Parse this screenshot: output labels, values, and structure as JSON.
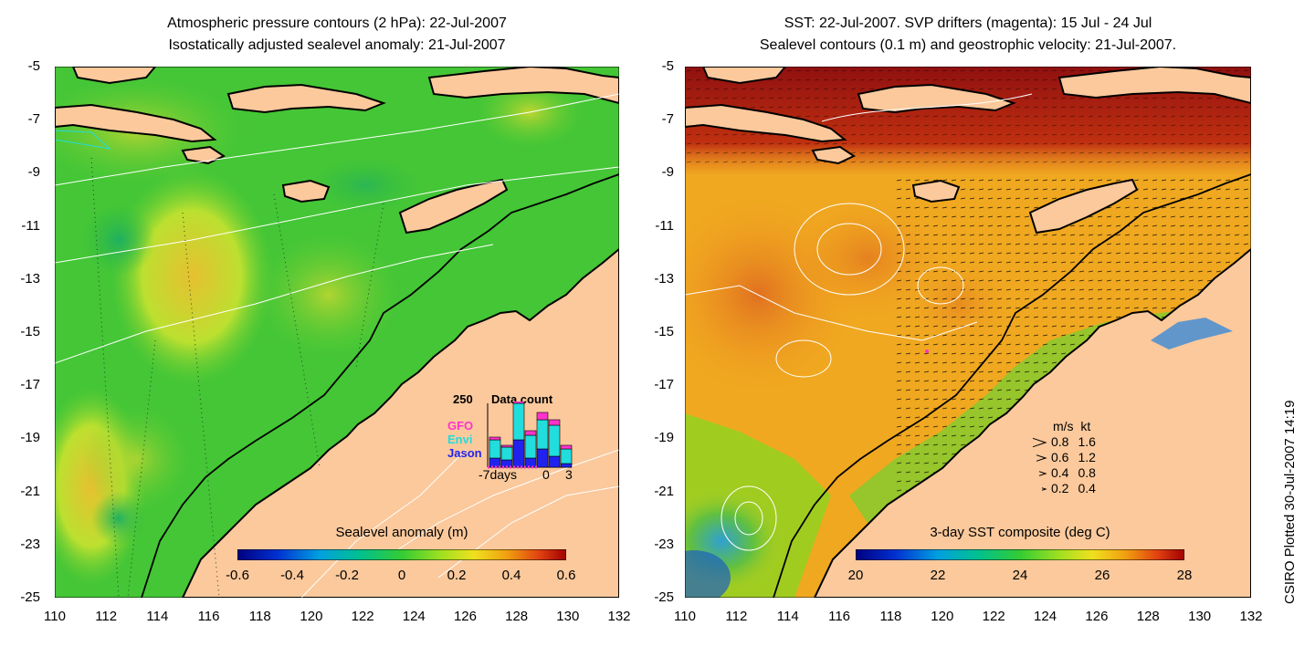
{
  "left": {
    "title_line1": "Atmospheric pressure contours (2 hPa): 22-Jul-2007",
    "title_line2": "Isostatically adjusted sealevel anomaly: 21-Jul-2007",
    "colorbar": {
      "title": "Sealevel anomaly (m)",
      "ticks": [
        "-0.6",
        "-0.4",
        "-0.2",
        "0",
        "0.2",
        "0.4",
        "0.6"
      ]
    },
    "data_count": {
      "title": "Data count",
      "ymax_label": "250",
      "x_labels": [
        "-7days",
        "0",
        "3"
      ],
      "satellites": [
        {
          "name": "GFO",
          "color": "#ff33cc"
        },
        {
          "name": "Envi",
          "color": "#22dddd"
        },
        {
          "name": "Jason",
          "color": "#2222ee"
        }
      ]
    }
  },
  "right": {
    "title_line1": "SST: 22-Jul-2007. SVP drifters (magenta): 15 Jul - 24 Jul",
    "title_line2": "Sealevel contours (0.1 m) and geostrophic velocity: 21-Jul-2007.",
    "colorbar": {
      "title": "3-day SST composite (deg C)",
      "ticks": [
        "20",
        "22",
        "24",
        "26",
        "28"
      ]
    },
    "velocity_legend": {
      "header_ms": "m/s",
      "header_kt": "kt",
      "rows": [
        {
          "ms": "0.8",
          "kt": "1.6"
        },
        {
          "ms": "0.6",
          "kt": "1.2"
        },
        {
          "ms": "0.4",
          "kt": "0.8"
        },
        {
          "ms": "0.2",
          "kt": "0.4"
        }
      ]
    }
  },
  "axes": {
    "y_ticks": [
      "-5",
      "-7",
      "-9",
      "-11",
      "-13",
      "-15",
      "-17",
      "-19",
      "-21",
      "-23",
      "-25"
    ],
    "x_ticks": [
      "110",
      "112",
      "114",
      "116",
      "118",
      "120",
      "122",
      "124",
      "126",
      "128",
      "130",
      "132"
    ]
  },
  "stamp": "CSIRO Plotted 30-Jul-2007 14:19",
  "colors": {
    "land": "#fbc99c",
    "sla_main": "#44cc33",
    "sst_main": "#f0a020",
    "sst_hot": "#b02010"
  }
}
